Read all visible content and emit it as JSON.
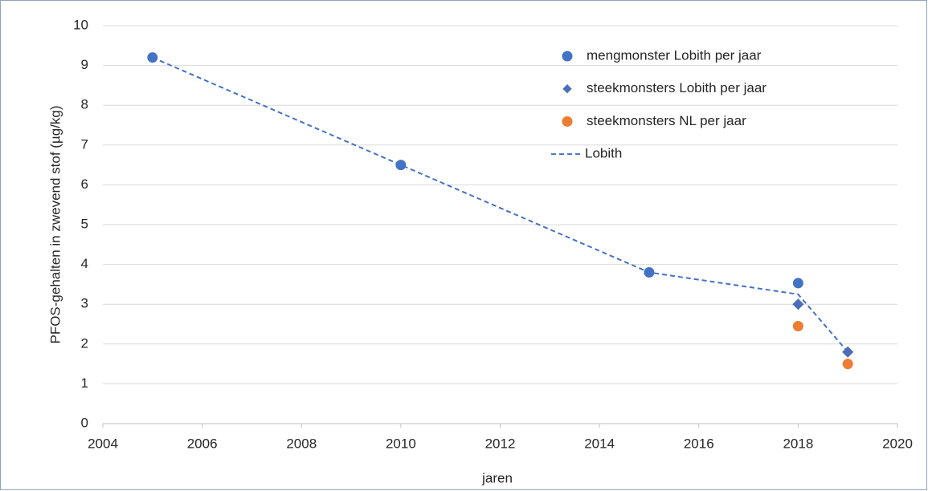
{
  "chart_data": {
    "type": "scatter",
    "xlabel": "jaren",
    "ylabel": "PFOS-gehalten in zwevend stof (µg/kg)",
    "xlim": [
      2004,
      2020
    ],
    "xticks": [
      2004,
      2006,
      2008,
      2010,
      2012,
      2014,
      2016,
      2018,
      2020
    ],
    "ylim": [
      0,
      10
    ],
    "yticks": [
      0,
      1,
      2,
      3,
      4,
      5,
      6,
      7,
      8,
      9,
      10
    ],
    "grid": true,
    "legend": "upper right",
    "series": [
      {
        "name": "mengmonster Lobith per jaar",
        "color": "#4472c4",
        "marker": "circle",
        "x": [
          2005,
          2010,
          2015,
          2018
        ],
        "values": [
          9.2,
          6.5,
          3.8,
          3.53
        ]
      },
      {
        "name": "steekmonsters Lobith per jaar",
        "color": "#4a6fb5",
        "marker": "diamond",
        "x": [
          2018,
          2019
        ],
        "values": [
          3.0,
          1.8
        ]
      },
      {
        "name": "steekmonsters NL per jaar",
        "color": "#ed7d31",
        "marker": "circle",
        "x": [
          2018,
          2019
        ],
        "values": [
          2.45,
          1.5
        ]
      },
      {
        "name": "Lobith",
        "color": "#4472c4",
        "marker": "dashed-line",
        "x": [
          2005,
          2010,
          2015,
          2018,
          2019
        ],
        "values": [
          9.2,
          6.5,
          3.8,
          3.25,
          1.8
        ]
      }
    ]
  }
}
